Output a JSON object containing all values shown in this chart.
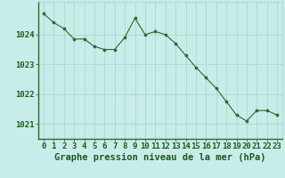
{
  "x": [
    0,
    1,
    2,
    3,
    4,
    5,
    6,
    7,
    8,
    9,
    10,
    11,
    12,
    13,
    14,
    15,
    16,
    17,
    18,
    19,
    20,
    21,
    22,
    23
  ],
  "y": [
    1024.7,
    1024.4,
    1024.2,
    1023.85,
    1023.85,
    1023.6,
    1023.5,
    1023.5,
    1023.9,
    1024.55,
    1024.0,
    1024.1,
    1024.0,
    1023.7,
    1023.3,
    1022.9,
    1022.55,
    1022.2,
    1021.75,
    1021.3,
    1021.1,
    1021.45,
    1021.45,
    1021.3
  ],
  "line_color": "#2d6a2d",
  "marker_color": "#2d6a2d",
  "bg_color": "#c8ece8",
  "grid_color": "#a8d4cc",
  "label_color": "#1a5c1a",
  "xlabel": "Graphe pression niveau de la mer (hPa)",
  "ylim": [
    1020.5,
    1025.1
  ],
  "yticks": [
    1021,
    1022,
    1023,
    1024
  ],
  "xticks": [
    0,
    1,
    2,
    3,
    4,
    5,
    6,
    7,
    8,
    9,
    10,
    11,
    12,
    13,
    14,
    15,
    16,
    17,
    18,
    19,
    20,
    21,
    22,
    23
  ],
  "tick_font_size": 6.5,
  "label_font_size": 7.5
}
